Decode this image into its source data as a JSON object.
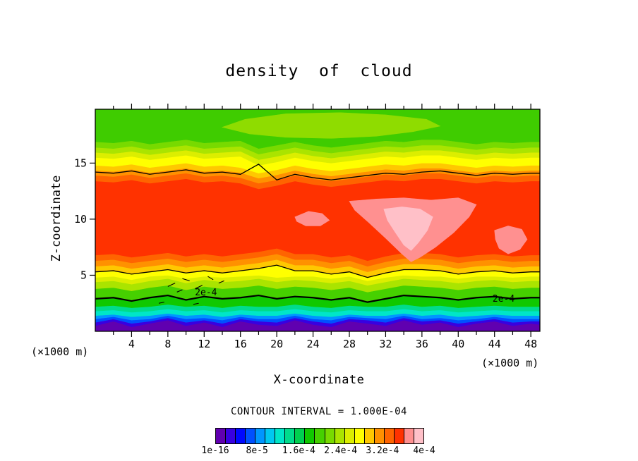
{
  "chart_data": {
    "type": "contour-fill",
    "title": "density of cloud",
    "xlabel": "X-coordinate",
    "ylabel": "Z-coordinate",
    "x_unit_label": "(×1000 m)",
    "contour_interval_label": "CONTOUR INTERVAL = 1.000E-04",
    "xlim": [
      0,
      49
    ],
    "ylim": [
      0,
      19.8
    ],
    "x_major_ticks": [
      4,
      8,
      12,
      16,
      20,
      24,
      28,
      32,
      36,
      40,
      44,
      48
    ],
    "x_minor_step": 2,
    "y_major_ticks": [
      5,
      10,
      15
    ],
    "x_grid": [
      0,
      2,
      4,
      6,
      8,
      10,
      12,
      14,
      16,
      18,
      20,
      22,
      24,
      26,
      28,
      30,
      32,
      34,
      36,
      38,
      40,
      42,
      44,
      46,
      48,
      49
    ],
    "bands": [
      {
        "color": "#6000B0",
        "top": [
          0.5,
          0.9,
          0.4,
          0.7,
          1.0,
          0.5,
          0.8,
          0.4,
          0.9,
          0.6,
          0.5,
          1.0,
          0.6,
          0.4,
          0.9,
          0.7,
          0.5,
          1.0,
          0.6,
          0.8,
          0.4,
          0.7,
          0.9,
          0.5,
          0.7,
          0.6
        ]
      },
      {
        "color": "#3800E0",
        "top": [
          0.8,
          1.1,
          0.7,
          0.9,
          1.2,
          0.8,
          1.0,
          0.7,
          1.1,
          0.9,
          0.8,
          1.2,
          0.9,
          0.7,
          1.1,
          1.0,
          0.8,
          1.2,
          0.9,
          1.0,
          0.7,
          0.9,
          1.1,
          0.8,
          0.9,
          0.9
        ]
      },
      {
        "color": "#0050FF",
        "top": [
          1.1,
          1.3,
          1.0,
          1.1,
          1.4,
          1.1,
          1.2,
          1.0,
          1.3,
          1.1,
          1.1,
          1.4,
          1.1,
          1.0,
          1.3,
          1.2,
          1.1,
          1.4,
          1.1,
          1.2,
          1.0,
          1.1,
          1.3,
          1.1,
          1.1,
          1.1
        ]
      },
      {
        "color": "#0096FF",
        "top": [
          1.4,
          1.5,
          1.3,
          1.4,
          1.6,
          1.4,
          1.5,
          1.3,
          1.5,
          1.4,
          1.4,
          1.6,
          1.4,
          1.3,
          1.5,
          1.4,
          1.4,
          1.6,
          1.4,
          1.5,
          1.3,
          1.4,
          1.5,
          1.4,
          1.4,
          1.4
        ]
      },
      {
        "color": "#00E6C8",
        "top": [
          1.8,
          1.9,
          1.7,
          1.8,
          2.0,
          1.8,
          1.9,
          1.7,
          1.9,
          1.8,
          1.8,
          2.0,
          1.8,
          1.7,
          1.9,
          1.8,
          1.8,
          2.0,
          1.8,
          1.9,
          1.7,
          1.8,
          1.9,
          1.8,
          1.8,
          1.8
        ]
      },
      {
        "color": "#00DC8C",
        "top": [
          2.2,
          2.3,
          2.1,
          2.2,
          2.4,
          2.2,
          2.3,
          2.1,
          2.3,
          2.2,
          2.2,
          2.4,
          2.2,
          2.1,
          2.3,
          2.2,
          2.2,
          2.4,
          2.2,
          2.3,
          2.1,
          2.2,
          2.3,
          2.2,
          2.2,
          2.2
        ]
      },
      {
        "color": "#10C800",
        "top": [
          2.9,
          3.0,
          2.7,
          3.0,
          3.2,
          2.8,
          3.1,
          2.9,
          3.0,
          3.2,
          2.9,
          3.1,
          3.0,
          2.8,
          3.0,
          2.6,
          2.9,
          3.2,
          3.1,
          3.0,
          2.8,
          3.0,
          3.1,
          2.9,
          3.0,
          3.0
        ]
      },
      {
        "color": "#46D000",
        "top": [
          3.8,
          3.9,
          3.6,
          3.9,
          4.1,
          3.7,
          4.0,
          3.8,
          3.9,
          4.1,
          3.8,
          4.0,
          3.9,
          3.7,
          3.9,
          3.5,
          3.8,
          4.1,
          4.0,
          3.9,
          3.7,
          3.9,
          4.0,
          3.8,
          3.9,
          3.9
        ]
      },
      {
        "color": "#AAE400",
        "top": [
          4.4,
          4.5,
          4.2,
          4.5,
          4.7,
          4.3,
          4.6,
          4.4,
          4.5,
          4.7,
          4.4,
          4.6,
          4.5,
          4.3,
          4.5,
          4.1,
          4.4,
          4.7,
          4.6,
          4.5,
          4.3,
          4.5,
          4.6,
          4.4,
          4.5,
          4.5
        ]
      },
      {
        "color": "#DCEE00",
        "top": [
          4.8,
          4.9,
          4.6,
          4.9,
          5.0,
          4.7,
          4.9,
          4.8,
          4.9,
          5.0,
          4.8,
          4.9,
          4.9,
          4.7,
          4.9,
          4.5,
          4.8,
          5.0,
          4.9,
          4.9,
          4.7,
          4.9,
          4.9,
          4.8,
          4.9,
          4.9
        ]
      },
      {
        "color": "#FFFF00",
        "top": [
          5.3,
          5.4,
          5.1,
          5.3,
          5.5,
          5.2,
          5.4,
          5.2,
          5.4,
          5.6,
          5.9,
          5.4,
          5.4,
          5.1,
          5.3,
          4.8,
          5.2,
          5.5,
          5.5,
          5.4,
          5.1,
          5.3,
          5.4,
          5.2,
          5.3,
          5.3
        ]
      },
      {
        "color": "#FFC800",
        "top": [
          5.8,
          5.9,
          5.6,
          5.8,
          6.0,
          5.7,
          5.9,
          5.7,
          5.9,
          6.1,
          6.4,
          5.9,
          5.9,
          5.6,
          5.8,
          5.3,
          5.7,
          6.0,
          6.0,
          5.9,
          5.6,
          5.8,
          5.9,
          5.7,
          5.8,
          5.8
        ]
      },
      {
        "color": "#FF9100",
        "top": [
          6.3,
          6.4,
          6.1,
          6.3,
          6.5,
          6.2,
          6.4,
          6.2,
          6.4,
          6.6,
          6.9,
          6.4,
          6.4,
          6.1,
          6.3,
          5.8,
          6.2,
          6.5,
          6.5,
          6.4,
          6.1,
          6.3,
          6.4,
          6.2,
          6.3,
          6.3
        ]
      },
      {
        "color": "#FF6400",
        "top": [
          6.8,
          6.9,
          6.6,
          6.8,
          7.0,
          6.7,
          6.9,
          6.7,
          6.9,
          7.1,
          7.4,
          6.9,
          6.9,
          6.6,
          6.8,
          6.3,
          6.7,
          7.0,
          7.0,
          6.9,
          6.6,
          6.8,
          6.9,
          6.7,
          6.8,
          6.8
        ]
      },
      {
        "color": "#FF3200",
        "top": [
          13.4,
          13.3,
          13.5,
          13.2,
          13.4,
          13.6,
          13.3,
          13.4,
          13.2,
          12.7,
          13.0,
          13.4,
          13.1,
          12.9,
          13.1,
          13.3,
          13.5,
          13.4,
          13.6,
          13.6,
          13.4,
          13.2,
          13.4,
          13.3,
          13.4,
          13.4
        ]
      },
      {
        "color": "#FF6400",
        "top": [
          13.9,
          13.8,
          14.0,
          13.7,
          13.9,
          14.1,
          13.8,
          13.9,
          13.7,
          13.2,
          13.5,
          13.9,
          13.6,
          13.4,
          13.6,
          13.8,
          14.0,
          13.9,
          14.1,
          14.1,
          13.9,
          13.7,
          13.9,
          13.8,
          13.9,
          13.9
        ]
      },
      {
        "color": "#FF9100",
        "top": [
          14.35,
          14.25,
          14.45,
          14.15,
          14.35,
          14.55,
          14.25,
          14.35,
          14.15,
          13.65,
          13.95,
          14.35,
          14.05,
          13.85,
          14.05,
          14.25,
          14.45,
          14.35,
          14.55,
          14.55,
          14.35,
          14.15,
          14.35,
          14.25,
          14.35,
          14.35
        ]
      },
      {
        "color": "#FFC800",
        "top": [
          14.8,
          14.7,
          14.9,
          14.6,
          14.8,
          15.0,
          14.7,
          14.8,
          14.6,
          14.1,
          14.4,
          14.8,
          14.5,
          14.3,
          14.5,
          14.7,
          14.9,
          14.8,
          15.0,
          15.0,
          14.8,
          14.6,
          14.8,
          14.7,
          14.8,
          14.8
        ]
      },
      {
        "color": "#FFFF00",
        "top": [
          15.5,
          15.4,
          15.6,
          15.3,
          15.5,
          15.7,
          15.4,
          15.5,
          15.6,
          14.8,
          15.1,
          15.5,
          15.2,
          15.0,
          15.2,
          15.4,
          15.6,
          15.5,
          15.7,
          15.7,
          15.5,
          15.3,
          15.5,
          15.4,
          15.5,
          15.5
        ]
      },
      {
        "color": "#DCEE00",
        "top": [
          15.95,
          15.85,
          16.05,
          15.75,
          15.95,
          16.15,
          15.85,
          15.95,
          16.05,
          15.3,
          15.6,
          15.95,
          15.65,
          15.45,
          15.65,
          15.85,
          16.05,
          15.95,
          16.15,
          16.15,
          15.95,
          15.75,
          15.95,
          15.85,
          15.95,
          15.95
        ]
      },
      {
        "color": "#AAE400",
        "top": [
          16.4,
          16.3,
          16.5,
          16.2,
          16.4,
          16.6,
          16.3,
          16.4,
          16.5,
          15.8,
          16.1,
          16.4,
          16.1,
          15.9,
          16.1,
          16.3,
          16.5,
          16.4,
          16.6,
          16.6,
          16.4,
          16.2,
          16.4,
          16.3,
          16.4,
          16.4
        ]
      },
      {
        "color": "#78DA00",
        "top": [
          16.9,
          16.8,
          17.0,
          16.7,
          16.9,
          17.1,
          16.8,
          16.9,
          17.0,
          16.3,
          16.6,
          16.9,
          16.6,
          16.4,
          16.6,
          16.8,
          17.0,
          16.9,
          17.1,
          17.1,
          16.9,
          16.7,
          16.9,
          16.8,
          16.9,
          16.9
        ]
      }
    ],
    "top_band_color": "#3FCC00",
    "islands": [
      {
        "color": "#8FDC00",
        "points": [
          [
            14,
            18.2
          ],
          [
            17,
            17.6
          ],
          [
            21,
            17.3
          ],
          [
            26,
            17.2
          ],
          [
            31,
            17.4
          ],
          [
            35,
            17.8
          ],
          [
            38,
            18.3
          ],
          [
            36.5,
            18.9
          ],
          [
            32,
            19.3
          ],
          [
            27,
            19.5
          ],
          [
            21,
            19.4
          ],
          [
            16.5,
            18.9
          ]
        ]
      },
      {
        "color": "#FF9090",
        "points": [
          [
            28,
            11.6
          ],
          [
            31,
            11.8
          ],
          [
            34,
            11.9
          ],
          [
            37,
            11.7
          ],
          [
            40,
            11.9
          ],
          [
            42,
            11.3
          ],
          [
            41.2,
            10.2
          ],
          [
            39.5,
            8.8
          ],
          [
            37.5,
            7.5
          ],
          [
            35.8,
            6.6
          ],
          [
            34.8,
            6.2
          ],
          [
            33.8,
            6.9
          ],
          [
            32,
            8.3
          ],
          [
            30,
            9.8
          ],
          [
            28.6,
            10.8
          ]
        ]
      },
      {
        "color": "#FFC0C8",
        "points": [
          [
            31.8,
            10.9
          ],
          [
            33.8,
            11.1
          ],
          [
            35.8,
            10.9
          ],
          [
            37.2,
            10.2
          ],
          [
            36.6,
            9.0
          ],
          [
            35.6,
            7.9
          ],
          [
            34.8,
            7.2
          ],
          [
            34.0,
            7.7
          ],
          [
            33.0,
            8.9
          ],
          [
            32.2,
            9.9
          ]
        ]
      },
      {
        "color": "#FF9090",
        "points": [
          [
            22,
            10.2
          ],
          [
            23.5,
            10.7
          ],
          [
            25,
            10.5
          ],
          [
            25.8,
            9.9
          ],
          [
            24.8,
            9.4
          ],
          [
            23.2,
            9.4
          ],
          [
            22.2,
            9.8
          ]
        ]
      },
      {
        "color": "#FF9090",
        "points": [
          [
            44,
            9.0
          ],
          [
            45.5,
            9.4
          ],
          [
            47,
            9.1
          ],
          [
            47.6,
            8.2
          ],
          [
            46.8,
            7.3
          ],
          [
            45.5,
            6.9
          ],
          [
            44.5,
            7.4
          ],
          [
            44.1,
            8.2
          ]
        ]
      }
    ],
    "contour_lines": [
      {
        "width": 2.2,
        "z": [
          2.9,
          3.0,
          2.7,
          3.0,
          3.2,
          2.8,
          3.1,
          2.9,
          3.0,
          3.2,
          2.9,
          3.1,
          3.0,
          2.8,
          3.0,
          2.6,
          2.9,
          3.2,
          3.1,
          3.0,
          2.8,
          3.0,
          3.1,
          2.9,
          3.0,
          3.0
        ]
      },
      {
        "width": 1.3,
        "z": [
          5.3,
          5.4,
          5.1,
          5.3,
          5.5,
          5.2,
          5.4,
          5.2,
          5.4,
          5.6,
          5.9,
          5.4,
          5.4,
          5.1,
          5.3,
          4.8,
          5.2,
          5.5,
          5.5,
          5.4,
          5.1,
          5.3,
          5.4,
          5.2,
          5.3,
          5.3
        ]
      },
      {
        "width": 1.3,
        "z": [
          14.2,
          14.1,
          14.3,
          14.0,
          14.2,
          14.4,
          14.1,
          14.2,
          14.0,
          14.9,
          13.5,
          14.0,
          13.7,
          13.5,
          13.7,
          13.9,
          14.1,
          14.0,
          14.2,
          14.3,
          14.1,
          13.9,
          14.1,
          14.0,
          14.1,
          14.1
        ]
      }
    ],
    "scribbles": [
      [
        [
          8,
          4.0
        ],
        [
          8.8,
          4.3
        ]
      ],
      [
        [
          9.6,
          4.7
        ],
        [
          10.4,
          4.5
        ]
      ],
      [
        [
          11,
          3.8
        ],
        [
          11.8,
          4.1
        ]
      ],
      [
        [
          12.4,
          4.9
        ],
        [
          13.0,
          4.6
        ]
      ],
      [
        [
          9.0,
          3.5
        ],
        [
          9.6,
          3.7
        ]
      ],
      [
        [
          13.6,
          4.3
        ],
        [
          14.2,
          4.5
        ]
      ],
      [
        [
          7.0,
          2.5
        ],
        [
          7.6,
          2.6
        ]
      ],
      [
        [
          10.8,
          2.4
        ],
        [
          11.4,
          2.5
        ]
      ]
    ],
    "inline_labels": [
      {
        "text": "2e-4",
        "x": 12.2,
        "z": 3.45
      },
      {
        "text": "2e-4",
        "x": 45.0,
        "z": 2.9
      }
    ],
    "colorbar": {
      "colors": [
        "#6000B0",
        "#3800E0",
        "#0008FF",
        "#0050FF",
        "#0096FF",
        "#00C8F0",
        "#00E6C8",
        "#00DC8C",
        "#00D050",
        "#10C800",
        "#46D000",
        "#78DA00",
        "#AAE400",
        "#DCEE00",
        "#FFFF00",
        "#FFC800",
        "#FF9100",
        "#FF6400",
        "#FF3200",
        "#FF9090",
        "#FFC0C8"
      ],
      "labels": [
        {
          "text": "1e-16",
          "f": 0
        },
        {
          "text": "8e-5",
          "f": 0.2
        },
        {
          "text": "1.6e-4",
          "f": 0.4
        },
        {
          "text": "2.4e-4",
          "f": 0.6
        },
        {
          "text": "3.2e-4",
          "f": 0.8
        },
        {
          "text": "4e-4",
          "f": 1.0
        }
      ]
    }
  }
}
